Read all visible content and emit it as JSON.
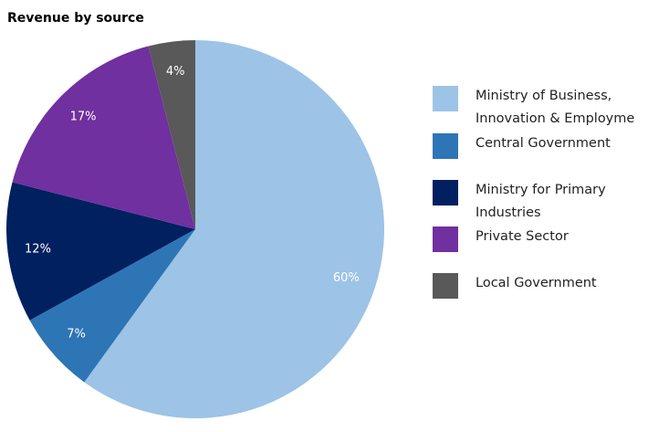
{
  "chart_data": {
    "type": "pie",
    "title": "Revenue by source",
    "categories": [
      "Ministry of Business, Innovation & Employme",
      "Central Government",
      "Ministry for Primary Industries",
      "Private Sector",
      "Local Government"
    ],
    "values": [
      60,
      7,
      12,
      17,
      4
    ],
    "value_labels": [
      "60%",
      "7%",
      "12%",
      "17%",
      "4%"
    ],
    "colors": [
      "#9dc3e6",
      "#2e75b6",
      "#002060",
      "#7030a0",
      "#595959"
    ]
  }
}
